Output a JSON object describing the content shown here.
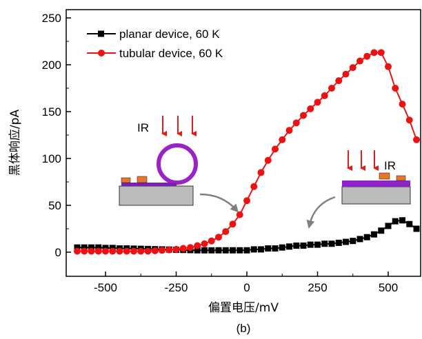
{
  "chart_data": {
    "type": "line",
    "title": "",
    "xlabel": "偏置电压/mV",
    "ylabel": "黑体响应/pA",
    "caption": "(b)",
    "xlim": [
      -610,
      610
    ],
    "ylim": [
      -25,
      258
    ],
    "xticks": [
      -500,
      -250,
      0,
      250,
      500
    ],
    "yticks": [
      0,
      50,
      100,
      150,
      200,
      250
    ],
    "xtick_labels": [
      "-500",
      "-250",
      "0",
      "250",
      "500"
    ],
    "ytick_labels": [
      "0",
      "50",
      "100",
      "150",
      "200",
      "250"
    ],
    "grid": false,
    "legend_position": "top-left",
    "series": [
      {
        "name": "planar device, 60 K",
        "color": "#000000",
        "marker": "square",
        "x": [
          -600,
          -575,
          -550,
          -525,
          -500,
          -475,
          -450,
          -425,
          -400,
          -375,
          -350,
          -325,
          -300,
          -275,
          -250,
          -225,
          -200,
          -175,
          -150,
          -125,
          -100,
          -75,
          -50,
          -25,
          0,
          25,
          50,
          75,
          100,
          125,
          150,
          175,
          200,
          225,
          250,
          275,
          300,
          325,
          350,
          375,
          400,
          425,
          450,
          475,
          500,
          525,
          550,
          575,
          600
        ],
        "y": [
          5,
          5,
          5,
          5,
          4.5,
          4.5,
          4,
          4,
          3.8,
          3.6,
          3.4,
          3.2,
          3,
          2.8,
          2.6,
          2.4,
          2.2,
          2,
          2,
          2,
          2,
          2,
          2,
          2,
          2,
          3,
          3,
          4,
          4,
          5,
          6,
          7,
          7,
          8,
          8,
          9,
          9,
          10,
          11,
          12,
          14,
          16,
          19,
          23,
          28,
          33,
          34,
          30,
          25
        ],
        "annotations": []
      },
      {
        "name": "tubular device, 60 K",
        "color": "#ee1111",
        "marker": "circle",
        "x": [
          -600,
          -575,
          -550,
          -525,
          -500,
          -475,
          -450,
          -425,
          -400,
          -375,
          -350,
          -325,
          -300,
          -275,
          -250,
          -225,
          -200,
          -175,
          -150,
          -125,
          -100,
          -75,
          -50,
          -25,
          0,
          25,
          50,
          75,
          100,
          125,
          150,
          175,
          200,
          225,
          250,
          275,
          300,
          325,
          350,
          375,
          400,
          425,
          450,
          475,
          500,
          525,
          550,
          575,
          600
        ],
        "y": [
          1,
          1,
          1,
          1,
          1,
          1,
          1,
          1,
          1,
          1,
          1,
          1.5,
          2,
          2.5,
          3,
          4,
          5,
          7,
          9,
          12,
          16,
          22,
          30,
          40,
          55,
          70,
          85,
          98,
          110,
          120,
          130,
          138,
          146,
          153,
          160,
          167,
          175,
          183,
          190,
          197,
          204,
          209,
          213,
          213,
          198,
          175,
          158,
          141,
          120
        ]
      }
    ],
    "insets": [
      {
        "label": "IR"
      },
      {
        "label": "IR"
      }
    ]
  }
}
